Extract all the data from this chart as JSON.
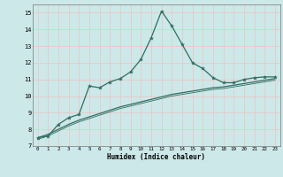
{
  "xlabel": "Humidex (Indice chaleur)",
  "xlim": [
    -0.5,
    23.5
  ],
  "ylim": [
    7,
    15.5
  ],
  "yticks": [
    7,
    8,
    9,
    10,
    11,
    12,
    13,
    14,
    15
  ],
  "xticks": [
    0,
    1,
    2,
    3,
    4,
    5,
    6,
    7,
    8,
    9,
    10,
    11,
    12,
    13,
    14,
    15,
    16,
    17,
    18,
    19,
    20,
    21,
    22,
    23
  ],
  "bg_color": "#cde8e8",
  "grid_color": "#e8c8c8",
  "line_color": "#2e6e62",
  "line1_x": [
    0,
    1,
    2,
    3,
    4,
    5,
    6,
    7,
    8,
    9,
    10,
    11,
    12,
    13,
    14,
    15,
    16,
    17,
    18,
    19,
    20,
    21,
    22,
    23
  ],
  "line1_y": [
    7.5,
    7.6,
    8.3,
    8.7,
    8.9,
    10.6,
    10.5,
    10.85,
    11.05,
    11.45,
    12.2,
    13.5,
    15.1,
    14.2,
    13.1,
    12.0,
    11.65,
    11.1,
    10.8,
    10.8,
    11.0,
    11.1,
    11.15,
    11.15
  ],
  "line2_x": [
    0,
    1,
    2,
    3,
    4,
    5,
    6,
    7,
    8,
    9,
    10,
    11,
    12,
    13,
    14,
    15,
    16,
    17,
    18,
    19,
    20,
    21,
    22,
    23
  ],
  "line2_y": [
    7.5,
    7.7,
    8.0,
    8.3,
    8.55,
    8.75,
    8.95,
    9.15,
    9.35,
    9.5,
    9.65,
    9.8,
    9.95,
    10.1,
    10.2,
    10.3,
    10.4,
    10.5,
    10.55,
    10.65,
    10.75,
    10.85,
    10.95,
    11.05
  ],
  "line2b_y": [
    7.4,
    7.6,
    7.9,
    8.2,
    8.45,
    8.65,
    8.85,
    9.05,
    9.25,
    9.4,
    9.55,
    9.7,
    9.85,
    10.0,
    10.1,
    10.2,
    10.3,
    10.4,
    10.45,
    10.55,
    10.65,
    10.75,
    10.85,
    10.95
  ]
}
